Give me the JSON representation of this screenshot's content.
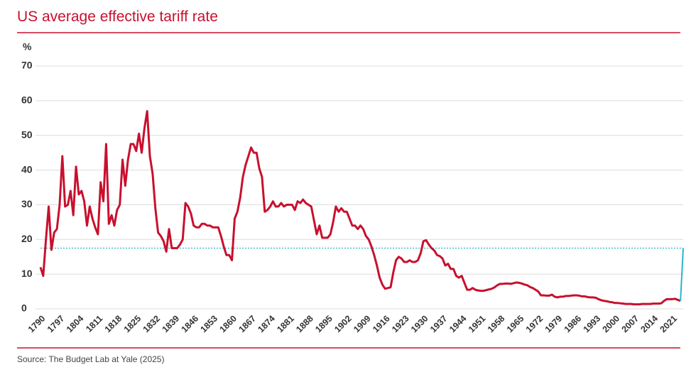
{
  "chart_data": {
    "type": "line",
    "title": "US average effective tariff rate",
    "y_label": "%",
    "source": "Source: The Budget Lab at Yale (2025)",
    "xlim": [
      1790,
      2025
    ],
    "ylim": [
      0,
      70
    ],
    "yticks": [
      0,
      10,
      20,
      30,
      40,
      50,
      60,
      70
    ],
    "xticks": [
      1790,
      1797,
      1804,
      1811,
      1818,
      1825,
      1832,
      1839,
      1846,
      1853,
      1860,
      1867,
      1874,
      1881,
      1888,
      1895,
      1902,
      1909,
      1916,
      1923,
      1930,
      1937,
      1944,
      1951,
      1958,
      1965,
      1972,
      1979,
      1986,
      1993,
      2000,
      2007,
      2014,
      2021
    ],
    "grid": true,
    "reference_line": {
      "value": 17.5,
      "color": "#2bb5c8",
      "dashed": true
    },
    "series": [
      {
        "color": "#c8102e",
        "x": [
          1790,
          1791,
          1792,
          1793,
          1794,
          1795,
          1796,
          1797,
          1798,
          1799,
          1800,
          1801,
          1802,
          1803,
          1804,
          1805,
          1806,
          1807,
          1808,
          1809,
          1810,
          1811,
          1812,
          1813,
          1814,
          1815,
          1816,
          1817,
          1818,
          1819,
          1820,
          1821,
          1822,
          1823,
          1824,
          1825,
          1826,
          1827,
          1828,
          1829,
          1830,
          1831,
          1832,
          1833,
          1834,
          1835,
          1836,
          1837,
          1838,
          1839,
          1840,
          1841,
          1842,
          1843,
          1844,
          1845,
          1846,
          1847,
          1848,
          1849,
          1850,
          1851,
          1852,
          1853,
          1854,
          1855,
          1856,
          1857,
          1858,
          1859,
          1860,
          1861,
          1862,
          1863,
          1864,
          1865,
          1866,
          1867,
          1868,
          1869,
          1870,
          1871,
          1872,
          1873,
          1874,
          1875,
          1876,
          1877,
          1878,
          1879,
          1880,
          1881,
          1882,
          1883,
          1884,
          1885,
          1886,
          1887,
          1888,
          1889,
          1890,
          1891,
          1892,
          1893,
          1894,
          1895,
          1896,
          1897,
          1898,
          1899,
          1900,
          1901,
          1902,
          1903,
          1904,
          1905,
          1906,
          1907,
          1908,
          1909,
          1910,
          1911,
          1912,
          1913,
          1914,
          1915,
          1916,
          1917,
          1918,
          1919,
          1920,
          1921,
          1922,
          1923,
          1924,
          1925,
          1926,
          1927,
          1928,
          1929,
          1930,
          1931,
          1932,
          1933,
          1934,
          1935,
          1936,
          1937,
          1938,
          1939,
          1940,
          1941,
          1942,
          1943,
          1944,
          1945,
          1946,
          1947,
          1948,
          1949,
          1950,
          1951,
          1952,
          1953,
          1954,
          1955,
          1956,
          1957,
          1958,
          1959,
          1960,
          1961,
          1962,
          1963,
          1964,
          1965,
          1966,
          1967,
          1968,
          1969,
          1970,
          1971,
          1972,
          1973,
          1974,
          1975,
          1976,
          1977,
          1978,
          1979,
          1980,
          1981,
          1982,
          1983,
          1984,
          1985,
          1986,
          1987,
          1988,
          1989,
          1990,
          1991,
          1992,
          1993,
          1994,
          1995,
          1996,
          1997,
          1998,
          1999,
          2000,
          2001,
          2002,
          2003,
          2004,
          2005,
          2006,
          2007,
          2008,
          2009,
          2010,
          2011,
          2012,
          2013,
          2014,
          2015,
          2016,
          2017,
          2018,
          2019,
          2020,
          2021,
          2022,
          2023,
          2024
        ],
        "values": [
          12,
          9.5,
          20,
          29.5,
          17,
          22,
          23,
          30,
          44,
          29.5,
          30,
          34,
          27,
          41,
          33,
          34,
          31,
          24,
          29.5,
          26,
          23.5,
          21.5,
          36.5,
          31,
          47.5,
          24.5,
          27,
          24,
          28.5,
          30,
          43,
          35.5,
          43,
          47.5,
          47.5,
          45.5,
          50.5,
          45,
          52,
          57,
          44,
          39,
          29,
          22,
          21,
          19.5,
          16.5,
          23,
          17.5,
          17.5,
          17.5,
          18.5,
          20,
          30.5,
          29.5,
          27.5,
          24,
          23.5,
          23.5,
          24.5,
          24.5,
          24,
          24,
          23.5,
          23.5,
          23.5,
          21,
          18,
          15.5,
          15.5,
          14,
          26,
          28,
          32,
          38,
          41.5,
          44,
          46.5,
          45,
          45,
          40.5,
          38,
          28,
          28.5,
          29.5,
          31,
          29.5,
          29.5,
          30.5,
          29.5,
          30,
          30,
          30,
          28.5,
          31,
          30.5,
          31.5,
          30.5,
          30,
          29.5,
          25.5,
          21.5,
          24,
          20.5,
          20.5,
          20.5,
          21.5,
          25,
          29.5,
          28,
          29,
          28,
          28,
          26,
          24,
          24,
          23,
          24,
          23,
          21,
          20,
          18,
          15.5,
          12.5,
          9,
          7,
          5.8,
          6,
          6.2,
          10.5,
          14,
          15,
          14.5,
          13.5,
          13.5,
          14,
          13.5,
          13.5,
          14,
          16,
          19.5,
          19.8,
          18.5,
          17.5,
          16.8,
          15.5,
          15.2,
          14.5,
          12.5,
          13,
          11.5,
          11.5,
          9.5,
          9,
          9.5,
          7.5,
          5.5,
          5.5,
          6,
          5.5,
          5.3,
          5.2,
          5.2,
          5.4,
          5.6,
          5.8,
          6.2,
          6.8,
          7.2,
          7.2,
          7.3,
          7.3,
          7.2,
          7.4,
          7.6,
          7.5,
          7.3,
          7,
          6.8,
          6.3,
          6,
          5.5,
          5,
          3.9,
          3.9,
          3.8,
          3.8,
          4.1,
          3.5,
          3.3,
          3.5,
          3.5,
          3.7,
          3.7,
          3.8,
          3.9,
          3.9,
          3.8,
          3.6,
          3.6,
          3.4,
          3.3,
          3.3,
          3.2,
          2.8,
          2.5,
          2.3,
          2.2,
          2,
          1.9,
          1.7,
          1.7,
          1.6,
          1.5,
          1.4,
          1.4,
          1.4,
          1.3,
          1.3,
          1.3,
          1.4,
          1.4,
          1.4,
          1.4,
          1.5,
          1.5,
          1.5,
          1.6,
          2.3,
          2.8,
          2.8,
          2.8,
          2.9,
          2.6,
          2.3
        ]
      },
      {
        "color": "#2bb5c8",
        "x": [
          2024,
          2025
        ],
        "values": [
          2.3,
          17.5
        ]
      }
    ]
  }
}
